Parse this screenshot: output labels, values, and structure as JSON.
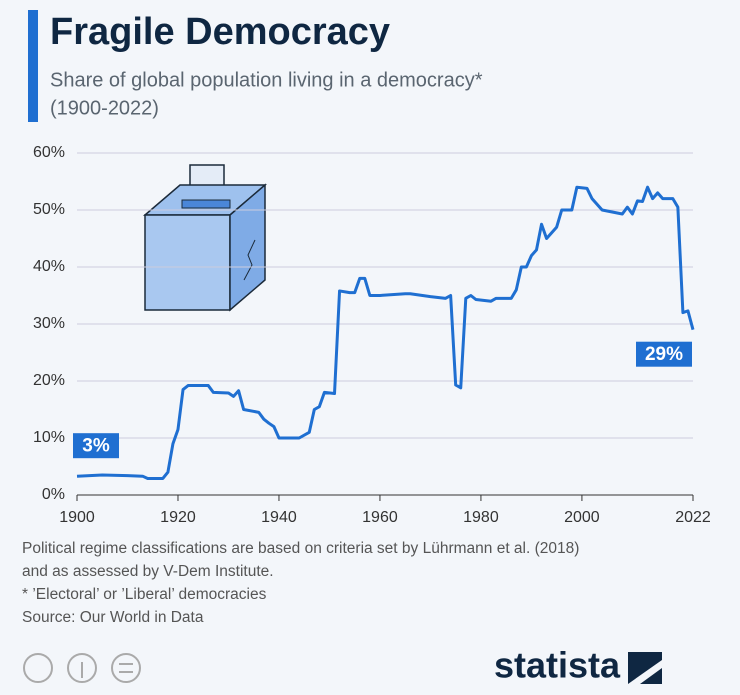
{
  "chart_data": {
    "type": "line",
    "title": "Fragile Democracy",
    "subtitle": [
      "Share of global population living in a democracy*",
      "(1900-2022)"
    ],
    "x": [
      1900,
      1905,
      1910,
      1913,
      1914,
      1917,
      1918,
      1919,
      1920,
      1921,
      1922,
      1926,
      1927,
      1930,
      1931,
      1932,
      1933,
      1936,
      1937,
      1938,
      1939,
      1940,
      1942,
      1944,
      1946,
      1947,
      1948,
      1949,
      1951,
      1952,
      1954,
      1955,
      1956,
      1957,
      1958,
      1960,
      1965,
      1966,
      1970,
      1973,
      1974,
      1975,
      1976,
      1977,
      1978,
      1979,
      1982,
      1983,
      1986,
      1987,
      1988,
      1989,
      1990,
      1991,
      1992,
      1993,
      1995,
      1996,
      1998,
      1999,
      2001,
      2002,
      2004,
      2008,
      2009,
      2010,
      2011,
      2012,
      2013,
      2014,
      2015,
      2016,
      2018,
      2019,
      2020,
      2021,
      2022
    ],
    "series": [
      {
        "name": "Share of global population living in a democracy",
        "color": "#1f6fd1",
        "values": [
          3.3,
          3.5,
          3.4,
          3.3,
          2.9,
          2.9,
          4,
          9,
          11.5,
          18.5,
          19.2,
          19.2,
          18,
          17.9,
          17.3,
          18.3,
          15,
          14.5,
          13.3,
          12.6,
          12,
          10,
          10,
          10,
          11,
          15,
          15.5,
          18,
          17.8,
          35.8,
          35.5,
          35.5,
          38,
          38,
          35,
          35,
          35.3,
          35.3,
          34.8,
          34.5,
          35,
          19.3,
          18.8,
          34.5,
          35,
          34.3,
          34,
          34.5,
          34.5,
          36,
          40,
          40,
          42,
          43,
          47.5,
          45,
          47,
          50,
          50,
          54,
          53.8,
          52,
          50,
          49.3,
          50.5,
          49.3,
          51.6,
          51.5,
          54,
          52,
          53,
          52,
          52,
          50.5,
          32,
          32.3,
          29
        ]
      }
    ],
    "annotations": [
      "3%",
      "29%"
    ],
    "xlim": [
      1900,
      2022
    ],
    "xticks": [
      1900,
      1920,
      1940,
      1960,
      1980,
      2000,
      2022
    ],
    "ylim": [
      0,
      60
    ],
    "yticks": [
      {
        "value": 0,
        "label": "0%"
      },
      {
        "value": 10,
        "label": "10%"
      },
      {
        "value": 20,
        "label": "20%"
      },
      {
        "value": 30,
        "label": "30%"
      },
      {
        "value": 40,
        "label": "40%"
      },
      {
        "value": 50,
        "label": "50%"
      },
      {
        "value": 60,
        "label": "60%"
      }
    ],
    "grid": true,
    "notes": [
      "Political regime classifications are based on criteria set by Lührmann et al. (2018)",
      "and as assessed by V-Dem Institute.",
      "* ’Electoral’ or ’Liberal’ democracies",
      "Source: Our World in Data"
    ],
    "brand": "statista"
  }
}
